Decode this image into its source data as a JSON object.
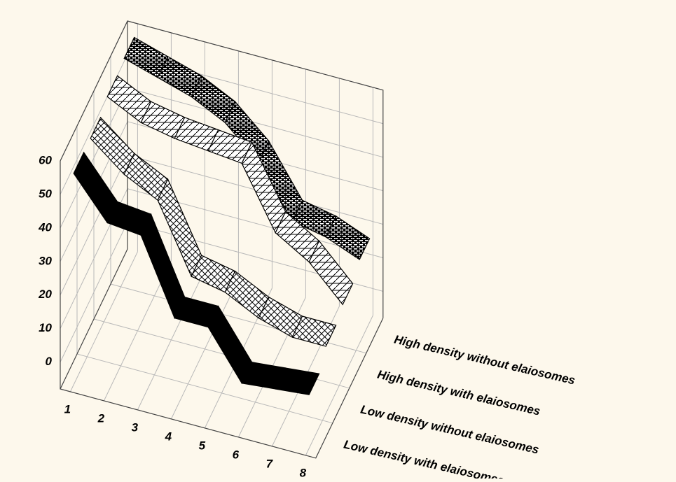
{
  "chart_data": {
    "type": "ribbon3d",
    "x": [
      1,
      2,
      3,
      4,
      5,
      6,
      7,
      8
    ],
    "xlim": [
      0.7,
      8.3
    ],
    "ylim": [
      -8,
      60
    ],
    "yticks": [
      0,
      10,
      20,
      30,
      40,
      50,
      60
    ],
    "grid": true,
    "series": [
      {
        "name": "Low density with elaiosomes",
        "color": "#000000",
        "pattern": "solid",
        "values": [
          55,
          43,
          42,
          20,
          20,
          6,
          7,
          8
        ]
      },
      {
        "name": "Low density without elaiosomes",
        "color": "#000000",
        "pattern": "crosshatch",
        "values": [
          55,
          47,
          42,
          22,
          20,
          15,
          12,
          12
        ]
      },
      {
        "name": "High density with elaiosomes",
        "color": "#000000",
        "pattern": "hatch",
        "values": [
          57,
          52,
          50,
          49,
          48,
          30,
          24,
          14
        ]
      },
      {
        "name": "High density without elaiosomes",
        "color": "#000000",
        "pattern": "brick",
        "values": [
          58,
          55,
          52,
          47,
          38,
          23,
          21,
          17
        ]
      }
    ]
  }
}
